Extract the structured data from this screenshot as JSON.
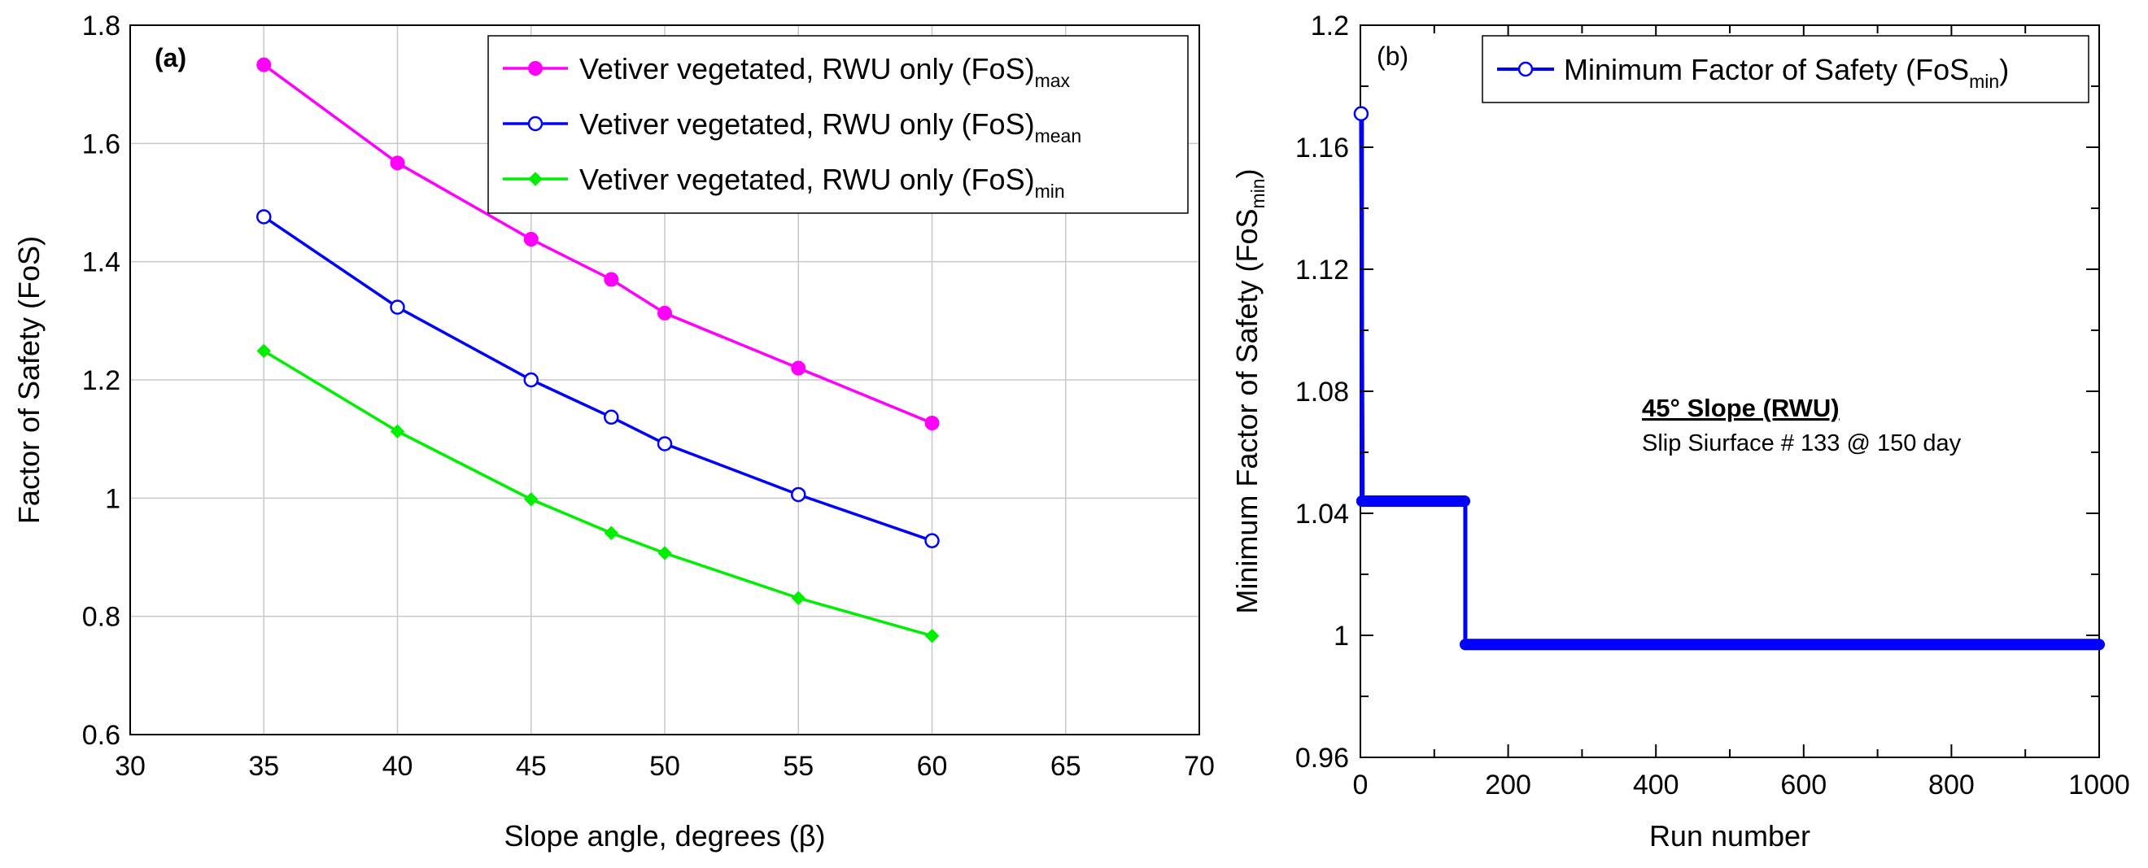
{
  "chart_data": [
    {
      "type": "line",
      "panel_label": "(a)",
      "xlabel": "Slope angle, degrees (β)",
      "ylabel": "Factor of Safety (FoS)",
      "xlim": [
        30,
        70
      ],
      "ylim": [
        0.6,
        1.8
      ],
      "xticks": [
        "30",
        "35",
        "40",
        "45",
        "50",
        "55",
        "60",
        "65",
        "70"
      ],
      "yticks": [
        "0.6",
        "0.8",
        "1",
        "1.2",
        "1.4",
        "1.6",
        "1.8"
      ],
      "grid": true,
      "legend_position": "top-right",
      "x": [
        35,
        40,
        45,
        48,
        50,
        55,
        60
      ],
      "series": [
        {
          "name": "Vetiver vegetated, RWU only (FoS)",
          "subscript": "max",
          "color": "#ff00ff",
          "marker": "filled-circle",
          "values": [
            1.733,
            1.567,
            1.438,
            1.37,
            1.313,
            1.22,
            1.127
          ]
        },
        {
          "name": "Vetiver vegetated, RWU only (FoS)",
          "subscript": "mean",
          "color": "#0000ff",
          "marker": "open-circle",
          "values": [
            1.476,
            1.323,
            1.2,
            1.137,
            1.092,
            1.006,
            0.928
          ]
        },
        {
          "name": "Vetiver vegetated, RWU only (FoS)",
          "subscript": "min",
          "color": "#00ee00",
          "marker": "diamond",
          "values": [
            1.249,
            1.113,
            0.998,
            0.941,
            0.907,
            0.831,
            0.767
          ]
        }
      ]
    },
    {
      "type": "line",
      "panel_label": "(b)",
      "xlabel": "Run number",
      "ylabel": "Minimum Factor of Safety (FoS",
      "ylabel_sub": "min",
      "ylabel_close": ")",
      "xlim": [
        0,
        1000
      ],
      "ylim": [
        0.96,
        1.2
      ],
      "xticks": [
        "0",
        "200",
        "400",
        "600",
        "800",
        "1000"
      ],
      "yticks": [
        "0.96",
        "1",
        "1.04",
        "1.08",
        "1.12",
        "1.16",
        "1.2"
      ],
      "grid": false,
      "legend_position": "top-right",
      "series": [
        {
          "name": "Minimum Factor of Safety (FoS",
          "subscript": "min",
          "name_close": ")",
          "color": "#0000ff",
          "marker": "open-circle",
          "x": [
            1,
            2,
            3,
            4,
            140,
            141,
            142,
            143,
            1000
          ],
          "values": [
            1.171,
            1.044,
            1.044,
            1.044,
            1.044,
            1.044,
            0.997,
            0.997,
            0.997
          ]
        }
      ],
      "annotation": {
        "title": "45° Slope (RWU)",
        "text": "Slip Siurface # 133 @ 150 day"
      }
    }
  ]
}
